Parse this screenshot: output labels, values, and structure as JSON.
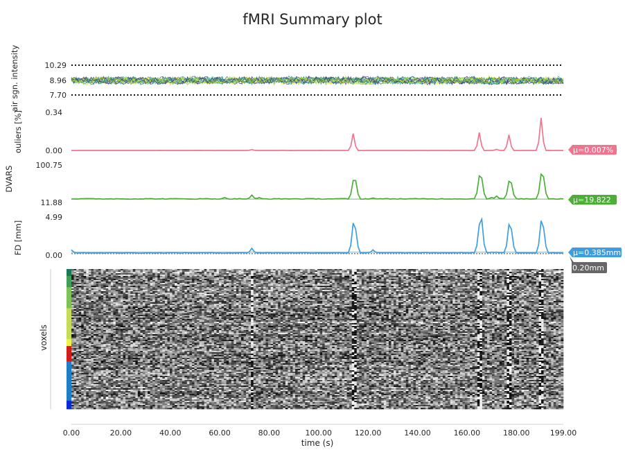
{
  "title": "fMRI Summary plot",
  "colors": {
    "outliers": "#f0748e",
    "dvars": "#4aaf34",
    "fd": "#3c9ee0",
    "threshold_badge": "#666666",
    "axis_text": "#262626"
  },
  "chart_data": [
    {
      "type": "line",
      "panel": "air-signal-intensity",
      "ylabel": "air sgn. intensity",
      "yticks": [
        "10.29",
        "8.96",
        "7.70"
      ],
      "ylim": [
        7.7,
        10.29
      ],
      "dotted_bounds": [
        7.7,
        10.29
      ],
      "n_series": 16,
      "series_colors": [
        "#440154",
        "#482878",
        "#3e4989",
        "#31688e",
        "#26828e",
        "#1f9e89",
        "#35b779",
        "#6ece58",
        "#b5de2b",
        "#fde725",
        "#2a788e",
        "#22a884",
        "#7ad151",
        "#414487",
        "#443983",
        "#c2df23"
      ],
      "center": 8.96,
      "spread": 0.33,
      "grid": false
    },
    {
      "type": "line",
      "panel": "outliers",
      "ylabel": "ouliers [%]",
      "yticks": [
        "0.34",
        "0.00"
      ],
      "ylim": [
        0.0,
        0.34
      ],
      "mean_label": "μ=0.007%",
      "baseline": 0.0,
      "peaks": [
        [
          73,
          0.008
        ],
        [
          114,
          0.15
        ],
        [
          165,
          0.16
        ],
        [
          172,
          0.01
        ],
        [
          177,
          0.14
        ],
        [
          190,
          0.29
        ]
      ],
      "grid": false
    },
    {
      "type": "line",
      "panel": "dvars",
      "ylabel": "DVARS",
      "yticks": [
        "100.75",
        "11.88"
      ],
      "ylim": [
        11.88,
        100.75
      ],
      "mean": 19.822,
      "mean_label": "μ=19.822",
      "baseline": 20.5,
      "peaks": [
        [
          62,
          23.5
        ],
        [
          73,
          29.5
        ],
        [
          76,
          23.5
        ],
        [
          114,
          64
        ],
        [
          115,
          64
        ],
        [
          122,
          22.5
        ],
        [
          165,
          75
        ],
        [
          166,
          70
        ],
        [
          170,
          23.5
        ],
        [
          172,
          27
        ],
        [
          177,
          62
        ],
        [
          178,
          58
        ],
        [
          190,
          79
        ],
        [
          191,
          73
        ]
      ],
      "grid": false
    },
    {
      "type": "line",
      "panel": "framewise-displacement",
      "ylabel": "FD [mm]",
      "yticks": [
        "4.99",
        "0.00"
      ],
      "ylim": [
        0.0,
        4.99
      ],
      "mean": 0.385,
      "mean_label": "μ=0.385mm",
      "threshold": 0.2,
      "threshold_label": "0.20mm",
      "baseline": 0.3,
      "peaks": [
        [
          0,
          0.7
        ],
        [
          73,
          0.9
        ],
        [
          114,
          4.2
        ],
        [
          115,
          3.4
        ],
        [
          122,
          0.7
        ],
        [
          165,
          4.0
        ],
        [
          166,
          4.7
        ],
        [
          170,
          0.4
        ],
        [
          172,
          0.4
        ],
        [
          177,
          4.0
        ],
        [
          178,
          3.4
        ],
        [
          190,
          4.5
        ],
        [
          191,
          3.6
        ]
      ],
      "grid": false
    },
    {
      "type": "heatmap",
      "panel": "carpet",
      "ylabel": "voxels",
      "xlabel": "time (s)",
      "xlim": [
        0,
        199
      ],
      "xticks": [
        "0.00",
        "20.00",
        "40.00",
        "60.00",
        "80.00",
        "100.00",
        "120.00",
        "140.00",
        "160.00",
        "180.00",
        "199.00"
      ],
      "xtick_values": [
        0,
        20,
        40,
        60,
        80,
        100,
        120,
        140,
        160,
        180,
        199
      ],
      "artifact_times": [
        73,
        114,
        115,
        165,
        166,
        177,
        178,
        190,
        191
      ],
      "segment_colors": [
        {
          "color": "#1b7a55",
          "fraction": 0.05
        },
        {
          "color": "#3f9f57",
          "fraction": 0.08
        },
        {
          "color": "#7cc255",
          "fraction": 0.15
        },
        {
          "color": "#c6dc55",
          "fraction": 0.22
        },
        {
          "color": "#f0f04a",
          "fraction": 0.05
        },
        {
          "color": "#d41a1a",
          "fraction": 0.11
        },
        {
          "color": "#1e7fc8",
          "fraction": 0.28
        },
        {
          "color": "#0a2ad6",
          "fraction": 0.06
        }
      ]
    }
  ]
}
